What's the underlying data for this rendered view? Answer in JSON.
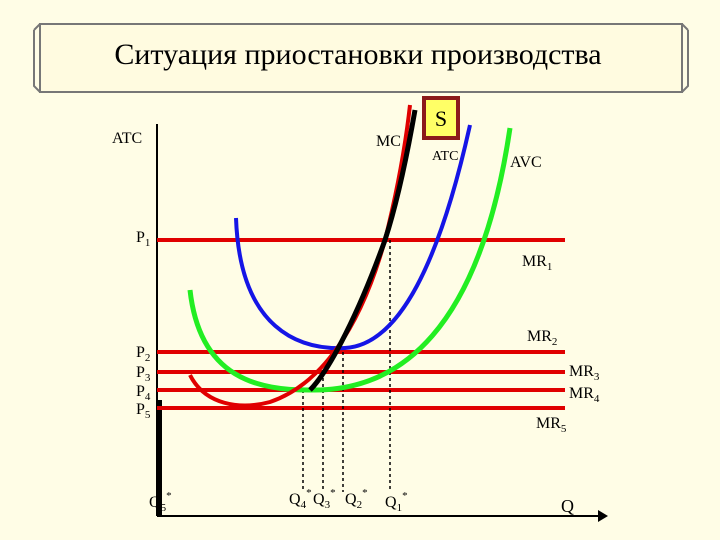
{
  "header": {
    "title": "Ситуация приостановки производства"
  },
  "axes": {
    "y_label": "ATC",
    "x_label": "Q"
  },
  "curves": {
    "mc": "MC",
    "supply": "S",
    "atc": "ATC",
    "avc": "AVC"
  },
  "prices": [
    {
      "letter": "P",
      "index": "1"
    },
    {
      "letter": "P",
      "index": "2"
    },
    {
      "letter": "P",
      "index": "3"
    },
    {
      "letter": "P",
      "index": "4"
    },
    {
      "letter": "P",
      "index": "5"
    }
  ],
  "revenues": [
    {
      "letter": "MR",
      "index": "1"
    },
    {
      "letter": "MR",
      "index": "2"
    },
    {
      "letter": "MR",
      "index": "3"
    },
    {
      "letter": "MR",
      "index": "4"
    },
    {
      "letter": "MR",
      "index": "5"
    }
  ],
  "quantities": [
    {
      "letter": "Q",
      "index": "5",
      "mark": "*"
    },
    {
      "letter": "Q",
      "index": "4",
      "mark": "*"
    },
    {
      "letter": "Q",
      "index": "3",
      "mark": "*"
    },
    {
      "letter": "Q",
      "index": "2",
      "mark": "*"
    },
    {
      "letter": "Q",
      "index": "1",
      "mark": "*"
    }
  ]
}
